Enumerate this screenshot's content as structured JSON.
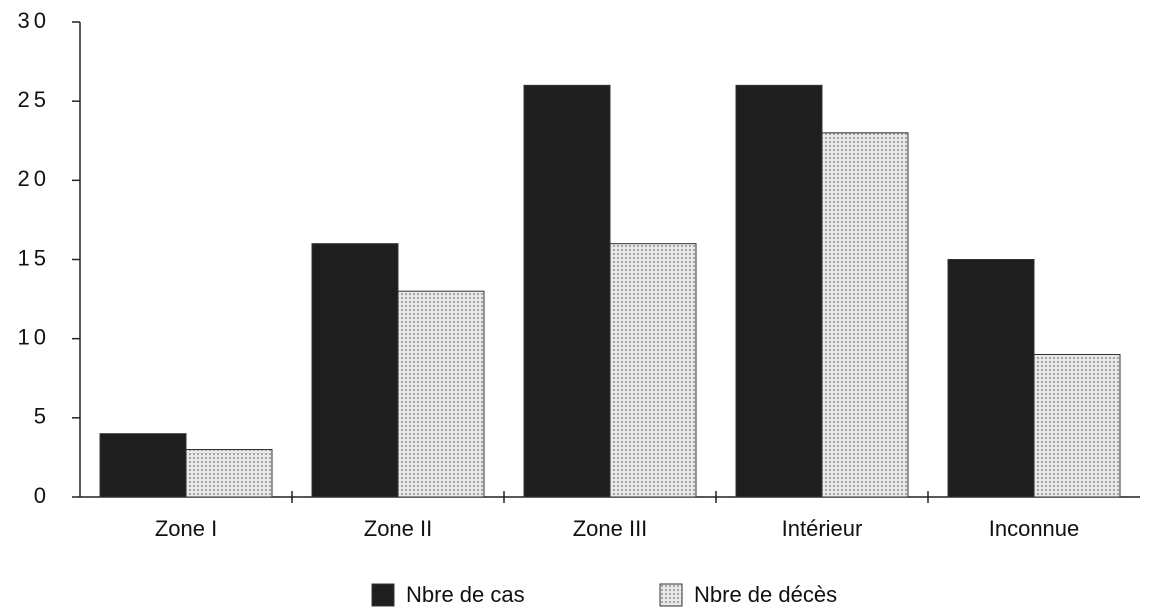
{
  "chart_data": {
    "type": "bar",
    "categories": [
      "Zone I",
      "Zone II",
      "Zone III",
      "Intérieur",
      "Inconnue"
    ],
    "series": [
      {
        "name": "Nbre de cas",
        "color": "#1e1e1e",
        "values": [
          4,
          16,
          26,
          26,
          15
        ]
      },
      {
        "name": "Nbre de décès",
        "color": "#cfcfcf",
        "values": [
          3,
          13,
          16,
          23,
          9
        ]
      }
    ],
    "ylim": [
      0,
      30
    ],
    "yticks": [
      0,
      5,
      10,
      15,
      20,
      25,
      30
    ],
    "legend": "bottom"
  }
}
